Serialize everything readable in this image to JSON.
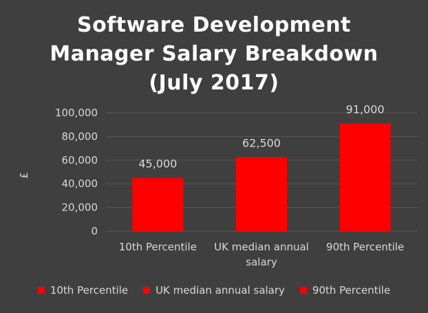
{
  "chart_data": {
    "type": "bar",
    "title_lines": [
      "Software Development",
      "Manager Salary Breakdown",
      "(July 2017)"
    ],
    "ylabel": "£",
    "xlabel": "",
    "categories": [
      "10th Percentile",
      "UK median annual salary",
      "90th Percentile"
    ],
    "category_label_lines": [
      [
        "10th Percentile"
      ],
      [
        "UK median annual",
        "salary"
      ],
      [
        "90th Percentile"
      ]
    ],
    "values": [
      45000,
      62500,
      91000
    ],
    "value_labels": [
      "45,000",
      "62,500",
      "91,000"
    ],
    "ylim": [
      0,
      100000
    ],
    "yticks": [
      0,
      20000,
      40000,
      60000,
      80000,
      100000
    ],
    "ytick_labels": [
      "0",
      "20,000",
      "40,000",
      "60,000",
      "80,000",
      "100,000"
    ],
    "grid": true,
    "legend_position": "bottom",
    "legend": [
      "10th Percentile",
      "UK median annual salary",
      "90th Percentile"
    ],
    "colors": {
      "bar": "#ff0000",
      "background": "#3f3f3f",
      "grid": "#595959",
      "text": "#d9d9d9",
      "title": "#ffffff"
    }
  }
}
